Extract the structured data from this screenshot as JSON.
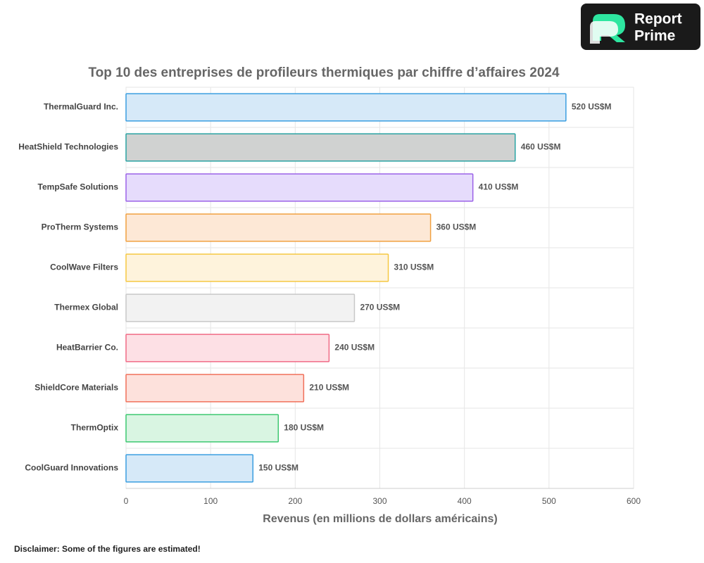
{
  "chart_data": {
    "type": "bar",
    "orientation": "horizontal",
    "title": "Top 10 des entreprises de profileurs thermiques par chiffre d’affaires 2024",
    "x_label": "Revenus (en millions de dollars américains)",
    "categories": [
      "ThermalGuard Inc.",
      "HeatShield Technologies",
      "TempSafe Solutions",
      "ProTherm Systems",
      "CoolWave Filters",
      "Thermex Global",
      "HeatBarrier Co.",
      "ShieldCore Materials",
      "ThermOptix",
      "CoolGuard Innovations"
    ],
    "values": [
      520,
      460,
      410,
      360,
      310,
      270,
      240,
      210,
      180,
      150
    ],
    "value_labels": [
      "520 US$M",
      "460 US$M",
      "410 US$M",
      "360 US$M",
      "310 US$M",
      "270 US$M",
      "240 US$M",
      "210 US$M",
      "180 US$M",
      "150 US$M"
    ],
    "colors": [
      "#d6e9f8",
      "#d0d2d1",
      "#e6dcfc",
      "#fde8d6",
      "#fef3dc",
      "#f2f2f2",
      "#fde0e5",
      "#fde1dc",
      "#d9f5e2",
      "#d6e9f8"
    ],
    "border_colors": [
      "#3a9ee0",
      "#2aa3a3",
      "#9b62e8",
      "#f0a040",
      "#f5c842",
      "#c8c8c8",
      "#f06a85",
      "#f0705a",
      "#3cc870",
      "#3a9ee0"
    ],
    "xlim": [
      0,
      600
    ],
    "xticks": [
      0,
      100,
      200,
      300,
      400,
      500,
      600
    ],
    "grid": true,
    "footnote": "Disclaimer: Some of the figures are estimated!"
  },
  "logo": {
    "line1": "Report",
    "line2": "Prime"
  }
}
